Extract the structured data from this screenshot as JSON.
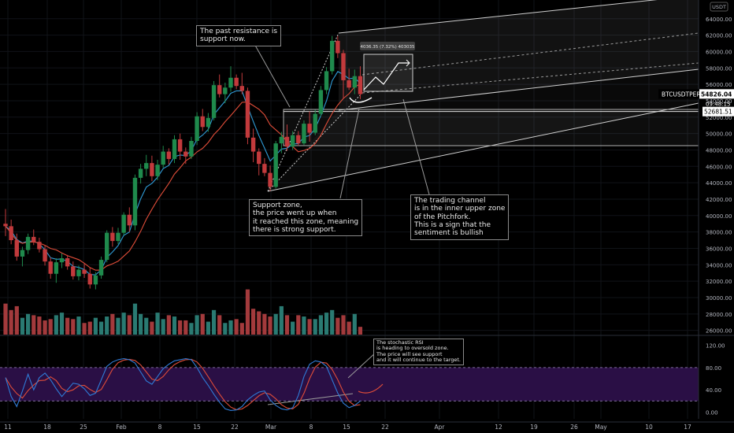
{
  "chart_data": {
    "type": "candlestick",
    "symbol": "BTCUSDTPERP",
    "currency": "USDT",
    "last_price": "54826.04",
    "countdown": "09:48:15",
    "support_level_label": "52681.51",
    "projection_label": "4036.35 (7.32%) 403035",
    "price_axis": {
      "ticks": [
        "64000.00",
        "62000.00",
        "60000.00",
        "58000.00",
        "56000.00",
        "54000.00",
        "52000.00",
        "50000.00",
        "48000.00",
        "46000.00",
        "44000.00",
        "42000.00",
        "40000.00",
        "38000.00",
        "36000.00",
        "34000.00",
        "32000.00",
        "30000.00",
        "28000.00",
        "26000.00"
      ],
      "values": [
        64000,
        62000,
        60000,
        58000,
        56000,
        54000,
        52000,
        50000,
        48000,
        46000,
        44000,
        42000,
        40000,
        38000,
        36000,
        34000,
        32000,
        30000,
        28000,
        26000
      ],
      "range": [
        25200,
        65800
      ]
    },
    "rsi_axis": {
      "ticks": [
        "120.00",
        "80.00",
        "40.00",
        "0.00"
      ],
      "values": [
        120,
        80,
        40,
        0
      ],
      "range": [
        -12,
        132
      ],
      "bands": [
        20,
        80
      ]
    },
    "time_axis": [
      "11",
      "18",
      "25",
      "Feb",
      "8",
      "15",
      "22",
      "Mar",
      "8",
      "15",
      "22",
      "Apr",
      "12",
      "19",
      "26",
      "May",
      "10",
      "17"
    ],
    "candles": [
      [
        39000,
        40800,
        37500,
        38700
      ],
      [
        38700,
        39500,
        36500,
        37000
      ],
      [
        37000,
        37800,
        34500,
        35000
      ],
      [
        35000,
        36200,
        33800,
        35800
      ],
      [
        35800,
        37800,
        35300,
        37400
      ],
      [
        37400,
        38300,
        36400,
        36800
      ],
      [
        36800,
        37300,
        35500,
        35900
      ],
      [
        35900,
        36300,
        33900,
        34400
      ],
      [
        34400,
        34900,
        32300,
        32900
      ],
      [
        32900,
        34800,
        31800,
        34300
      ],
      [
        34300,
        35400,
        33600,
        34800
      ],
      [
        34800,
        35200,
        33400,
        33800
      ],
      [
        33800,
        34400,
        32200,
        32600
      ],
      [
        32600,
        33900,
        32100,
        33400
      ],
      [
        33400,
        34200,
        32400,
        32900
      ],
      [
        32900,
        33600,
        31100,
        31600
      ],
      [
        31600,
        33100,
        31000,
        32700
      ],
      [
        32700,
        35000,
        32300,
        34600
      ],
      [
        34600,
        38200,
        34300,
        37900
      ],
      [
        37900,
        38600,
        36200,
        36900
      ],
      [
        36900,
        38500,
        36500,
        37900
      ],
      [
        37900,
        40400,
        37600,
        40100
      ],
      [
        40100,
        41000,
        38000,
        38800
      ],
      [
        38800,
        45000,
        38200,
        44600
      ],
      [
        44600,
        46300,
        43900,
        45700
      ],
      [
        45700,
        47400,
        44800,
        46400
      ],
      [
        46400,
        47300,
        44200,
        44800
      ],
      [
        44800,
        46800,
        44300,
        46200
      ],
      [
        46200,
        48500,
        45800,
        47800
      ],
      [
        47800,
        48200,
        46200,
        46900
      ],
      [
        46900,
        49800,
        46400,
        49300
      ],
      [
        49300,
        50000,
        46800,
        47800
      ],
      [
        47800,
        48300,
        46300,
        47200
      ],
      [
        47200,
        49600,
        46900,
        49100
      ],
      [
        49100,
        52600,
        48600,
        52100
      ],
      [
        52100,
        53000,
        50300,
        50800
      ],
      [
        50800,
        52500,
        50200,
        51900
      ],
      [
        51900,
        56400,
        51600,
        55900
      ],
      [
        55900,
        57200,
        54400,
        54800
      ],
      [
        54800,
        56200,
        53700,
        55600
      ],
      [
        55600,
        58200,
        55100,
        56800
      ],
      [
        56800,
        57200,
        55400,
        55800
      ],
      [
        55800,
        57400,
        54800,
        55200
      ],
      [
        55200,
        55600,
        48700,
        49500
      ],
      [
        49500,
        50600,
        46500,
        47800
      ],
      [
        47800,
        48200,
        44900,
        46300
      ],
      [
        46300,
        47000,
        44800,
        45200
      ],
      [
        45200,
        46100,
        43000,
        43500
      ],
      [
        43500,
        49100,
        43300,
        48800
      ],
      [
        48800,
        50200,
        47600,
        49600
      ],
      [
        49600,
        51100,
        47900,
        48400
      ],
      [
        48400,
        50300,
        48000,
        49800
      ],
      [
        49800,
        50300,
        48500,
        48800
      ],
      [
        48800,
        51600,
        48600,
        51200
      ],
      [
        51200,
        52700,
        49000,
        50100
      ],
      [
        50100,
        52900,
        49800,
        52400
      ],
      [
        52400,
        55800,
        52100,
        55300
      ],
      [
        55300,
        58100,
        54800,
        57600
      ],
      [
        57600,
        61900,
        57200,
        61300
      ],
      [
        61300,
        61900,
        59200,
        59800
      ],
      [
        59800,
        60200,
        54200,
        56500
      ],
      [
        56500,
        57900,
        55300,
        55600
      ],
      [
        55600,
        57800,
        54800,
        57000
      ],
      [
        57000,
        58200,
        54200,
        54800
      ]
    ],
    "volume": [
      48,
      38,
      44,
      26,
      32,
      30,
      28,
      22,
      24,
      30,
      34,
      26,
      24,
      28,
      18,
      20,
      26,
      20,
      28,
      32,
      26,
      34,
      30,
      48,
      32,
      26,
      20,
      34,
      24,
      30,
      28,
      22,
      22,
      18,
      30,
      32,
      20,
      38,
      30,
      18,
      22,
      24,
      18,
      70,
      40,
      36,
      32,
      28,
      32,
      44,
      30,
      20,
      30,
      28,
      24,
      24,
      30,
      34,
      38,
      26,
      30,
      20,
      32,
      12
    ]
  }
}
